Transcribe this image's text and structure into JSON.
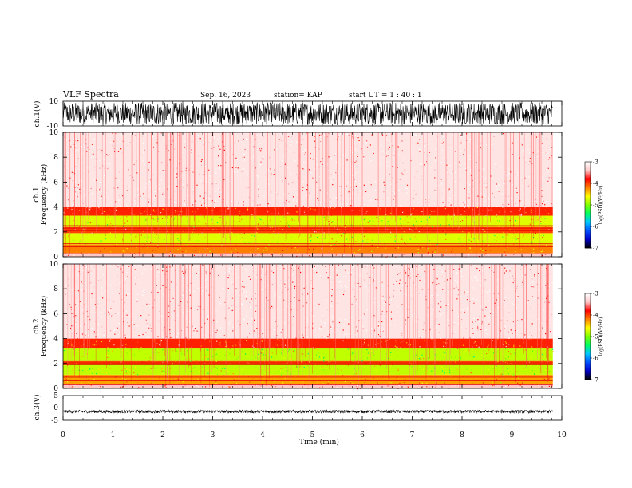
{
  "header": {
    "title": "VLF Spectra",
    "date": "Sep. 16, 2023",
    "station": "station= KAP",
    "start_ut": "start  UT  =   1 : 40 : 1"
  },
  "chart_data": [
    {
      "type": "line",
      "name": "ch1-waveform",
      "ylabel": "ch.1(V)",
      "yticks": [
        "10",
        "-10"
      ],
      "ylim": [
        -10,
        10
      ],
      "xlim": [
        0,
        10
      ],
      "data_end_min": 9.82,
      "description_values": {
        "approx_envelope": [
          -9,
          9
        ]
      }
    },
    {
      "type": "heatmap",
      "name": "ch1-spectrogram",
      "ylabel": "ch.1",
      "ylabel2": "Frequency  (kHz)",
      "yticks": [
        "0",
        "2",
        "4",
        "6",
        "8",
        "10"
      ],
      "ylim_khz": [
        0,
        10
      ],
      "xlim_min": [
        0,
        10
      ],
      "data_end_min": 9.82,
      "bands": [
        {
          "from_khz": 0.0,
          "to_khz": 0.3,
          "level": -3.4
        },
        {
          "from_khz": 0.3,
          "to_khz": 1.0,
          "level": -4.2
        },
        {
          "from_khz": 1.0,
          "to_khz": 1.9,
          "level": -4.7
        },
        {
          "from_khz": 1.9,
          "to_khz": 2.4,
          "level": -4.0
        },
        {
          "from_khz": 2.4,
          "to_khz": 3.3,
          "level": -4.7
        },
        {
          "from_khz": 3.3,
          "to_khz": 4.0,
          "level": -3.9
        },
        {
          "from_khz": 4.0,
          "to_khz": 10.0,
          "level": -3.2
        }
      ],
      "line_freqs_khz": [
        0.25,
        0.55,
        0.8,
        1.05,
        2.1,
        2.3,
        2.5
      ]
    },
    {
      "type": "heatmap",
      "name": "ch2-spectrogram",
      "ylabel": "ch.2",
      "ylabel2": "Frequency  (kHz)",
      "yticks": [
        "0",
        "2",
        "4",
        "6",
        "8",
        "10"
      ],
      "ylim_khz": [
        0,
        10
      ],
      "xlim_min": [
        0,
        10
      ],
      "data_end_min": 9.82,
      "bands": [
        {
          "from_khz": 0.0,
          "to_khz": 0.3,
          "level": -3.4
        },
        {
          "from_khz": 0.3,
          "to_khz": 1.1,
          "level": -4.3
        },
        {
          "from_khz": 1.1,
          "to_khz": 1.9,
          "level": -4.8
        },
        {
          "from_khz": 1.9,
          "to_khz": 2.2,
          "level": -4.0
        },
        {
          "from_khz": 2.2,
          "to_khz": 3.2,
          "level": -4.8
        },
        {
          "from_khz": 3.2,
          "to_khz": 4.0,
          "level": -3.9
        },
        {
          "from_khz": 4.0,
          "to_khz": 10.0,
          "level": -3.2
        }
      ],
      "line_freqs_khz": [
        0.3,
        0.6,
        0.9,
        1.9,
        2.05
      ]
    },
    {
      "type": "line",
      "name": "ch3-waveform",
      "ylabel": "ch.3(V)",
      "yticks": [
        "5",
        "0",
        "-5"
      ],
      "ylim": [
        -5,
        5
      ],
      "xlim": [
        0,
        10
      ],
      "data_end_min": 9.82,
      "description_values": {
        "approx_level": -1.5,
        "approx_envelope": [
          -2.1,
          -0.9
        ]
      }
    }
  ],
  "x_axis": {
    "label": "Time  (min)",
    "ticks": [
      "0",
      "1",
      "2",
      "3",
      "4",
      "5",
      "6",
      "7",
      "8",
      "9",
      "10"
    ]
  },
  "colorbar": {
    "title": "log(PSD)(V²/Hz)",
    "ticks": [
      "-3",
      "-4",
      "-5",
      "-6",
      "-7"
    ],
    "range": [
      -7,
      -3
    ],
    "colors": [
      "#000000",
      "#0000c8",
      "#0050ff",
      "#00c8ff",
      "#00ff60",
      "#80ff00",
      "#ffff00",
      "#ff8000",
      "#ff0000",
      "#ffc8c8",
      "#ffffff"
    ]
  }
}
